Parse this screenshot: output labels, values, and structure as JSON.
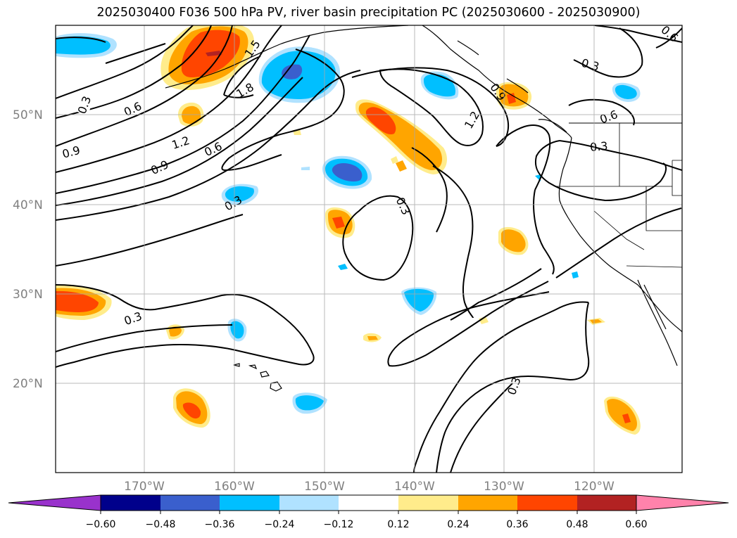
{
  "title": "2025030400 F036 500 hPa PV, river basin precipitation PC (2025030600 - 2025030900)",
  "latitude_labels": [
    "50°N",
    "40°N",
    "30°N",
    "20°N"
  ],
  "longitude_labels": [
    "170°W",
    "160°W",
    "150°W",
    "140°W",
    "130°W",
    "120°W"
  ],
  "contour_labels": [
    "0.3",
    "0.6",
    "0.9",
    "1.2",
    "1.8",
    "1.5",
    "0.6",
    "0.9",
    "1.2",
    "0.3",
    "0.3",
    "0.3",
    "0.3",
    "0.9",
    "0.6",
    "0.3",
    "0.6",
    "0.3",
    "0.3",
    "1.2",
    "0.6"
  ],
  "colorbar": {
    "ticks": [
      "−0.60",
      "−0.48",
      "−0.36",
      "−0.24",
      "−0.12",
      "0.12",
      "0.24",
      "0.36",
      "0.48",
      "0.60"
    ],
    "colors": [
      "#9932cc",
      "#00008b",
      "#3a5fcd",
      "#00bfff",
      "#b0e2ff",
      "#ffffff",
      "#ffec8b",
      "#ffa500",
      "#ff4500",
      "#b22222",
      "#ff82ab"
    ]
  },
  "colors": {
    "neg_light": "#b0e2ff",
    "neg_mid": "#00bfff",
    "neg_strong": "#3a5fcd",
    "pos_light": "#ffec8b",
    "pos_mid": "#ffa500",
    "pos_strong": "#ff4500",
    "pos_deep": "#b22222"
  }
}
